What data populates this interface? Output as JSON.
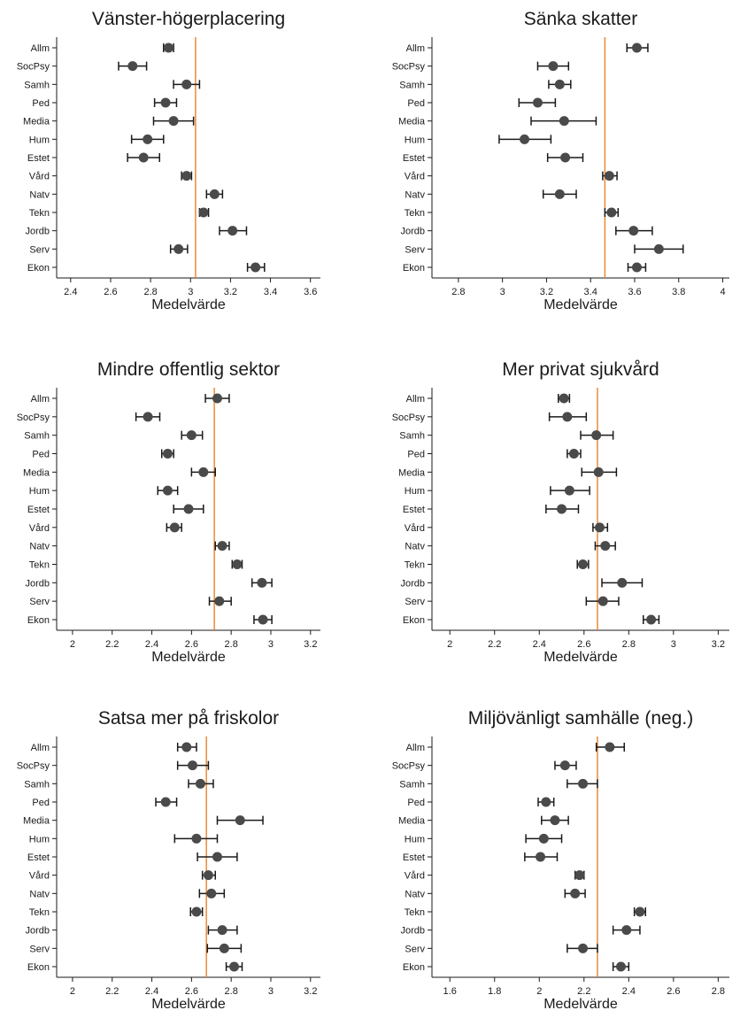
{
  "chart_data": [
    {
      "type": "scatter",
      "title": "Vänster-högerplacering",
      "xlabel": "Medelvärde",
      "xlim": [
        2.33,
        3.65
      ],
      "xticks": [
        "2.4",
        "2.6",
        "2.8",
        "3",
        "3.2",
        "3.4",
        "3.6"
      ],
      "reference_line": 3.025,
      "categories": [
        "Allm",
        "SocPsy",
        "Samh",
        "Ped",
        "Media",
        "Hum",
        "Estet",
        "Vård",
        "Natv",
        "Tekn",
        "Jordb",
        "Serv",
        "Ekon"
      ],
      "means": [
        2.89,
        2.71,
        2.98,
        2.875,
        2.915,
        2.785,
        2.765,
        2.98,
        3.12,
        3.065,
        3.21,
        2.94,
        3.325
      ],
      "ci_low": [
        2.865,
        2.64,
        2.915,
        2.82,
        2.815,
        2.705,
        2.685,
        2.955,
        3.08,
        3.045,
        3.145,
        2.9,
        3.285
      ],
      "ci_high": [
        2.915,
        2.78,
        3.045,
        2.93,
        3.015,
        2.865,
        2.845,
        3.005,
        3.16,
        3.09,
        3.28,
        2.985,
        3.37
      ]
    },
    {
      "type": "scatter",
      "title": "Sänka skatter",
      "xlabel": "Medelvärde",
      "xlim": [
        2.68,
        4.03
      ],
      "xticks": [
        "2.8",
        "3",
        "3.2",
        "3.4",
        "3.6",
        "3.8",
        "4"
      ],
      "reference_line": 3.465,
      "categories": [
        "Allm",
        "SocPsy",
        "Samh",
        "Ped",
        "Media",
        "Hum",
        "Estet",
        "Vård",
        "Natv",
        "Tekn",
        "Jordb",
        "Serv",
        "Ekon"
      ],
      "means": [
        3.61,
        3.23,
        3.26,
        3.16,
        3.28,
        3.1,
        3.285,
        3.485,
        3.26,
        3.495,
        3.595,
        3.71,
        3.61
      ],
      "ci_low": [
        3.565,
        3.16,
        3.21,
        3.075,
        3.13,
        2.985,
        3.205,
        3.455,
        3.185,
        3.465,
        3.515,
        3.6,
        3.57
      ],
      "ci_high": [
        3.66,
        3.3,
        3.31,
        3.24,
        3.425,
        3.22,
        3.365,
        3.52,
        3.335,
        3.525,
        3.68,
        3.82,
        3.65
      ]
    },
    {
      "type": "scatter",
      "title": "Mindre offentlig sektor",
      "xlabel": "Medelvärde",
      "xlim": [
        1.92,
        3.25
      ],
      "xticks": [
        "2",
        "2.2",
        "2.4",
        "2.6",
        "2.8",
        "3",
        "3.2"
      ],
      "reference_line": 2.715,
      "categories": [
        "Allm",
        "SocPsy",
        "Samh",
        "Ped",
        "Media",
        "Hum",
        "Estet",
        "Vård",
        "Natv",
        "Tekn",
        "Jordb",
        "Serv",
        "Ekon"
      ],
      "means": [
        2.73,
        2.38,
        2.6,
        2.48,
        2.66,
        2.48,
        2.585,
        2.515,
        2.755,
        2.83,
        2.955,
        2.74,
        2.96
      ],
      "ci_low": [
        2.67,
        2.32,
        2.55,
        2.45,
        2.6,
        2.43,
        2.51,
        2.475,
        2.72,
        2.805,
        2.905,
        2.69,
        2.915
      ],
      "ci_high": [
        2.79,
        2.44,
        2.655,
        2.51,
        2.72,
        2.53,
        2.66,
        2.55,
        2.79,
        2.855,
        3.005,
        2.8,
        3.005
      ]
    },
    {
      "type": "scatter",
      "title": "Mer privat sjukvård",
      "xlabel": "Medelvärde",
      "xlim": [
        1.92,
        3.25
      ],
      "xticks": [
        "2",
        "2.2",
        "2.4",
        "2.6",
        "2.8",
        "3",
        "3.2"
      ],
      "reference_line": 2.66,
      "categories": [
        "Allm",
        "SocPsy",
        "Samh",
        "Ped",
        "Media",
        "Hum",
        "Estet",
        "Vård",
        "Natv",
        "Tekn",
        "Jordb",
        "Serv",
        "Ekon"
      ],
      "means": [
        2.51,
        2.525,
        2.655,
        2.555,
        2.665,
        2.535,
        2.5,
        2.67,
        2.695,
        2.595,
        2.77,
        2.685,
        2.9
      ],
      "ci_low": [
        2.485,
        2.445,
        2.585,
        2.525,
        2.59,
        2.45,
        2.43,
        2.64,
        2.65,
        2.57,
        2.68,
        2.61,
        2.865
      ],
      "ci_high": [
        2.535,
        2.61,
        2.73,
        2.585,
        2.745,
        2.625,
        2.575,
        2.705,
        2.74,
        2.62,
        2.86,
        2.755,
        2.935
      ]
    },
    {
      "type": "scatter",
      "title": "Satsa mer på friskolor",
      "xlabel": "Medelvärde",
      "xlim": [
        1.92,
        3.25
      ],
      "xticks": [
        "2",
        "2.2",
        "2.4",
        "2.6",
        "2.8",
        "3",
        "3.2"
      ],
      "reference_line": 2.675,
      "categories": [
        "Allm",
        "SocPsy",
        "Samh",
        "Ped",
        "Media",
        "Hum",
        "Estet",
        "Vård",
        "Natv",
        "Tekn",
        "Jordb",
        "Serv",
        "Ekon"
      ],
      "means": [
        2.575,
        2.605,
        2.645,
        2.47,
        2.845,
        2.625,
        2.73,
        2.685,
        2.7,
        2.625,
        2.755,
        2.765,
        2.815
      ],
      "ci_low": [
        2.53,
        2.53,
        2.585,
        2.42,
        2.73,
        2.515,
        2.63,
        2.655,
        2.64,
        2.595,
        2.685,
        2.68,
        2.775
      ],
      "ci_high": [
        2.625,
        2.685,
        2.71,
        2.525,
        2.96,
        2.73,
        2.83,
        2.72,
        2.765,
        2.655,
        2.83,
        2.85,
        2.855
      ]
    },
    {
      "type": "scatter",
      "title": "Miljövänligt samhälle (neg.)",
      "xlabel": "Medelvärde",
      "xlim": [
        1.52,
        2.85
      ],
      "xticks": [
        "1.6",
        "1.8",
        "2",
        "2.2",
        "2.4",
        "2.6",
        "2.8"
      ],
      "reference_line": 2.26,
      "categories": [
        "Allm",
        "SocPsy",
        "Samh",
        "Ped",
        "Media",
        "Hum",
        "Estet",
        "Vård",
        "Natv",
        "Tekn",
        "Jordb",
        "Serv",
        "Ekon"
      ],
      "means": [
        2.315,
        2.115,
        2.195,
        2.03,
        2.07,
        2.02,
        2.005,
        2.18,
        2.16,
        2.45,
        2.39,
        2.195,
        2.365
      ],
      "ci_low": [
        2.255,
        2.07,
        2.125,
        1.995,
        2.01,
        1.94,
        1.935,
        2.16,
        2.115,
        2.425,
        2.33,
        2.125,
        2.33
      ],
      "ci_high": [
        2.38,
        2.165,
        2.26,
        2.065,
        2.13,
        2.1,
        2.08,
        2.2,
        2.205,
        2.475,
        2.45,
        2.26,
        2.4
      ]
    }
  ]
}
